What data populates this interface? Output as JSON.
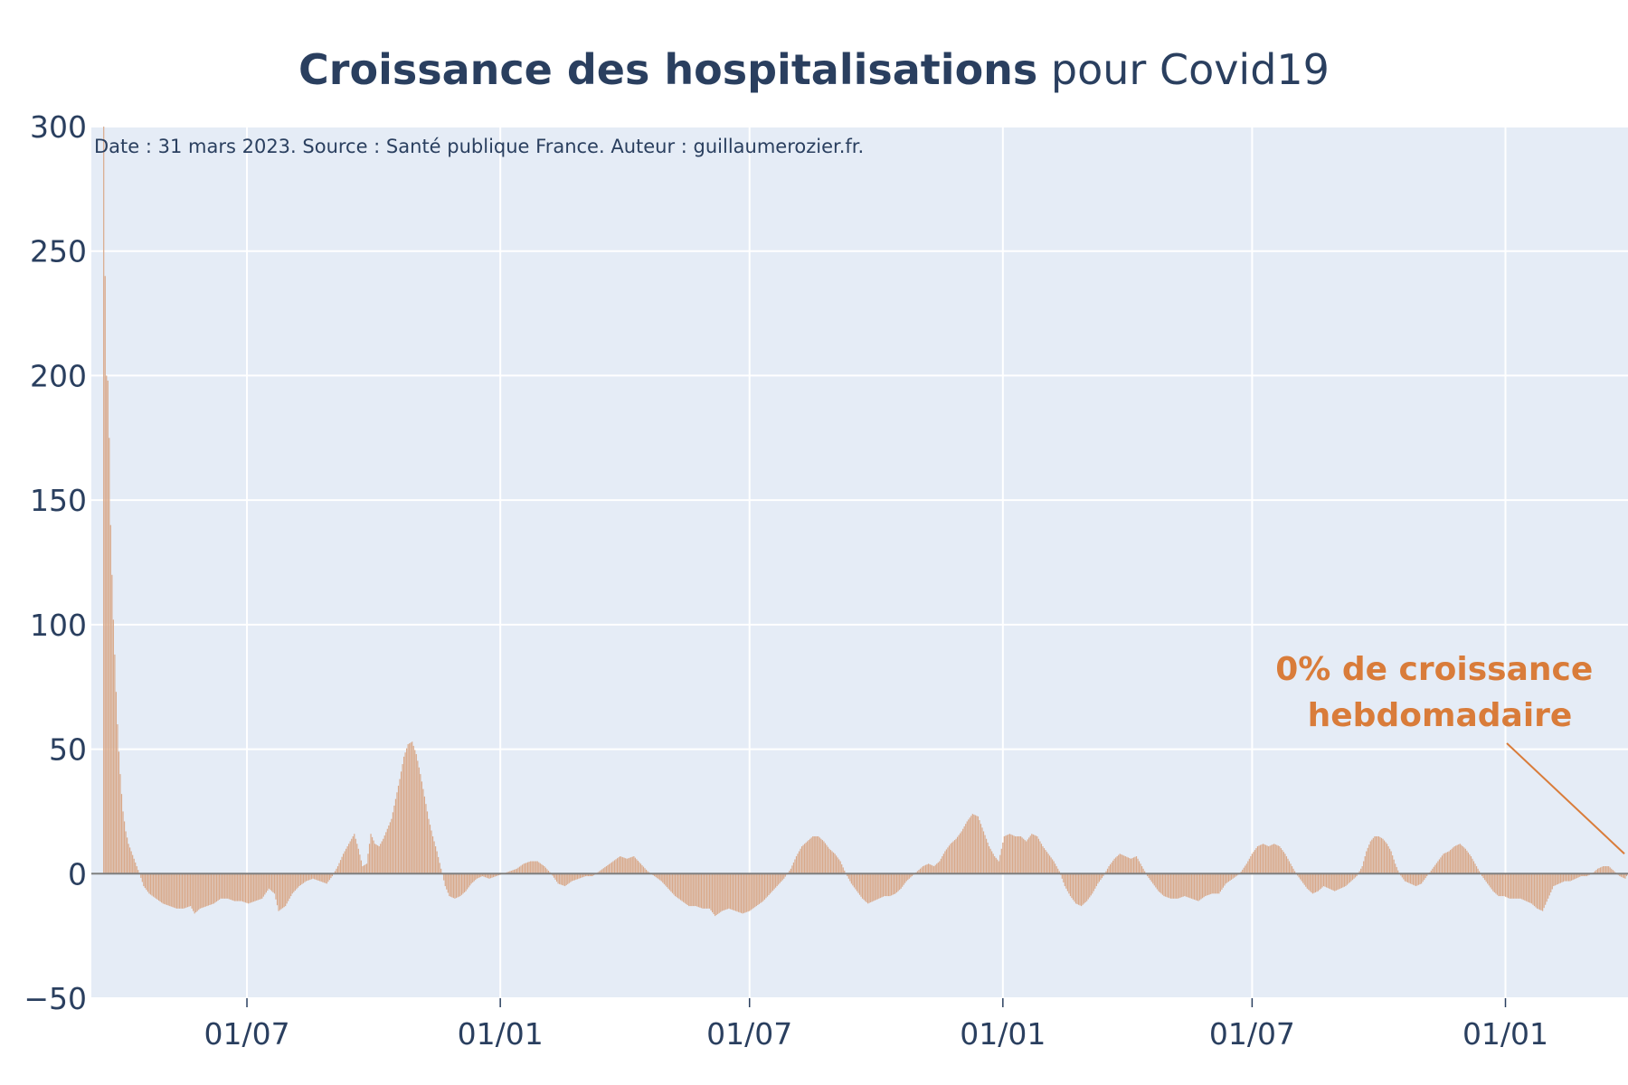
{
  "chart_data": {
    "type": "bar",
    "title_bold": "Croissance des hospitalisations",
    "title_rest": " pour Covid19",
    "subtitle": "Date : 31 mars 2023. Source : Santé publique France. Auteur : guillaumerozier.fr.",
    "xlabel": "",
    "ylabel": "",
    "ylim": [
      -50,
      300
    ],
    "y_ticks": [
      "300",
      "250",
      "200",
      "150",
      "100",
      "50",
      "0",
      "−50"
    ],
    "y_tick_values": [
      300,
      250,
      200,
      150,
      100,
      50,
      0,
      -50
    ],
    "x_ticks": [
      "01/07",
      "01/01",
      "01/07",
      "01/01",
      "01/07",
      "01/01"
    ],
    "x_tick_values": [
      "2020-07-01",
      "2021-01-01",
      "2021-07-01",
      "2022-01-01",
      "2022-07-01",
      "2023-01-01"
    ],
    "x_range": [
      "2020-03-10",
      "2023-03-31"
    ],
    "bar_color": "#d9a98a",
    "zero_line_color": "#7f7f7f",
    "grid": true,
    "plot_bg": "#e5ecf6",
    "annotation": {
      "lines": [
        "0% de croissance",
        "hebdomadaire"
      ],
      "color": "#d97c3a",
      "points_to": {
        "x": "2023-03-31",
        "y": 0
      }
    },
    "series": [
      {
        "points": [
          [
            "2020-03-19",
            300
          ],
          [
            "2020-03-20",
            240
          ],
          [
            "2020-03-21",
            200
          ],
          [
            "2020-03-22",
            198
          ],
          [
            "2020-03-23",
            175
          ],
          [
            "2020-03-24",
            140
          ],
          [
            "2020-03-25",
            120
          ],
          [
            "2020-03-26",
            102
          ],
          [
            "2020-03-27",
            88
          ],
          [
            "2020-03-28",
            73
          ],
          [
            "2020-03-29",
            60
          ],
          [
            "2020-03-30",
            49
          ],
          [
            "2020-03-31",
            40
          ],
          [
            "2020-04-01",
            32
          ],
          [
            "2020-04-02",
            25
          ],
          [
            "2020-04-04",
            17
          ],
          [
            "2020-04-06",
            12
          ],
          [
            "2020-04-08",
            9
          ],
          [
            "2020-04-10",
            6
          ],
          [
            "2020-04-12",
            3
          ],
          [
            "2020-04-14",
            0
          ],
          [
            "2020-04-17",
            -5
          ],
          [
            "2020-04-21",
            -8
          ],
          [
            "2020-04-26",
            -10
          ],
          [
            "2020-05-01",
            -12
          ],
          [
            "2020-05-06",
            -13
          ],
          [
            "2020-05-11",
            -14
          ],
          [
            "2020-05-16",
            -14
          ],
          [
            "2020-05-21",
            -13
          ],
          [
            "2020-05-24",
            -16
          ],
          [
            "2020-05-28",
            -14
          ],
          [
            "2020-06-02",
            -13
          ],
          [
            "2020-06-07",
            -12
          ],
          [
            "2020-06-12",
            -10
          ],
          [
            "2020-06-17",
            -10
          ],
          [
            "2020-06-22",
            -11
          ],
          [
            "2020-06-27",
            -11
          ],
          [
            "2020-07-02",
            -12
          ],
          [
            "2020-07-07",
            -11
          ],
          [
            "2020-07-12",
            -10
          ],
          [
            "2020-07-17",
            -6
          ],
          [
            "2020-07-21",
            -8
          ],
          [
            "2020-07-24",
            -15
          ],
          [
            "2020-07-29",
            -13
          ],
          [
            "2020-08-03",
            -8
          ],
          [
            "2020-08-08",
            -5
          ],
          [
            "2020-08-13",
            -3
          ],
          [
            "2020-08-18",
            -2
          ],
          [
            "2020-08-23",
            -3
          ],
          [
            "2020-08-28",
            -4
          ],
          [
            "2020-09-01",
            -1
          ],
          [
            "2020-09-05",
            3
          ],
          [
            "2020-09-09",
            8
          ],
          [
            "2020-09-13",
            12
          ],
          [
            "2020-09-17",
            16
          ],
          [
            "2020-09-20",
            10
          ],
          [
            "2020-09-23",
            3
          ],
          [
            "2020-09-26",
            4
          ],
          [
            "2020-09-29",
            16
          ],
          [
            "2020-10-02",
            12
          ],
          [
            "2020-10-05",
            11
          ],
          [
            "2020-10-08",
            14
          ],
          [
            "2020-10-11",
            18
          ],
          [
            "2020-10-14",
            22
          ],
          [
            "2020-10-17",
            30
          ],
          [
            "2020-10-20",
            38
          ],
          [
            "2020-10-23",
            47
          ],
          [
            "2020-10-26",
            52
          ],
          [
            "2020-10-29",
            53
          ],
          [
            "2020-11-01",
            48
          ],
          [
            "2020-11-04",
            40
          ],
          [
            "2020-11-07",
            31
          ],
          [
            "2020-11-10",
            22
          ],
          [
            "2020-11-13",
            15
          ],
          [
            "2020-11-16",
            9
          ],
          [
            "2020-11-19",
            2
          ],
          [
            "2020-11-22",
            -5
          ],
          [
            "2020-11-25",
            -9
          ],
          [
            "2020-11-29",
            -10
          ],
          [
            "2020-12-03",
            -9
          ],
          [
            "2020-12-07",
            -7
          ],
          [
            "2020-12-11",
            -4
          ],
          [
            "2020-12-15",
            -2
          ],
          [
            "2020-12-19",
            -1
          ],
          [
            "2020-12-24",
            -2
          ],
          [
            "2020-12-29",
            -1
          ],
          [
            "2021-01-03",
            0
          ],
          [
            "2021-01-08",
            1
          ],
          [
            "2021-01-13",
            2
          ],
          [
            "2021-01-18",
            4
          ],
          [
            "2021-01-23",
            5
          ],
          [
            "2021-01-28",
            5
          ],
          [
            "2021-02-02",
            3
          ],
          [
            "2021-02-07",
            0
          ],
          [
            "2021-02-12",
            -4
          ],
          [
            "2021-02-17",
            -5
          ],
          [
            "2021-02-22",
            -3
          ],
          [
            "2021-02-27",
            -2
          ],
          [
            "2021-03-04",
            -1
          ],
          [
            "2021-03-09",
            -1
          ],
          [
            "2021-03-14",
            1
          ],
          [
            "2021-03-19",
            3
          ],
          [
            "2021-03-24",
            5
          ],
          [
            "2021-03-29",
            7
          ],
          [
            "2021-04-03",
            6
          ],
          [
            "2021-04-08",
            7
          ],
          [
            "2021-04-13",
            4
          ],
          [
            "2021-04-18",
            1
          ],
          [
            "2021-04-23",
            -1
          ],
          [
            "2021-04-28",
            -3
          ],
          [
            "2021-05-03",
            -6
          ],
          [
            "2021-05-08",
            -9
          ],
          [
            "2021-05-13",
            -11
          ],
          [
            "2021-05-18",
            -13
          ],
          [
            "2021-05-23",
            -13
          ],
          [
            "2021-05-28",
            -14
          ],
          [
            "2021-06-02",
            -14
          ],
          [
            "2021-06-06",
            -17
          ],
          [
            "2021-06-11",
            -15
          ],
          [
            "2021-06-16",
            -14
          ],
          [
            "2021-06-21",
            -15
          ],
          [
            "2021-06-26",
            -16
          ],
          [
            "2021-07-01",
            -15
          ],
          [
            "2021-07-06",
            -13
          ],
          [
            "2021-07-11",
            -11
          ],
          [
            "2021-07-16",
            -8
          ],
          [
            "2021-07-21",
            -5
          ],
          [
            "2021-07-26",
            -2
          ],
          [
            "2021-07-31",
            2
          ],
          [
            "2021-08-04",
            7
          ],
          [
            "2021-08-08",
            11
          ],
          [
            "2021-08-12",
            13
          ],
          [
            "2021-08-16",
            15
          ],
          [
            "2021-08-20",
            15
          ],
          [
            "2021-08-24",
            13
          ],
          [
            "2021-08-28",
            10
          ],
          [
            "2021-09-01",
            8
          ],
          [
            "2021-09-05",
            5
          ],
          [
            "2021-09-09",
            0
          ],
          [
            "2021-09-13",
            -4
          ],
          [
            "2021-09-17",
            -7
          ],
          [
            "2021-09-21",
            -10
          ],
          [
            "2021-09-25",
            -12
          ],
          [
            "2021-09-29",
            -11
          ],
          [
            "2021-10-03",
            -10
          ],
          [
            "2021-10-07",
            -9
          ],
          [
            "2021-10-11",
            -9
          ],
          [
            "2021-10-15",
            -8
          ],
          [
            "2021-10-19",
            -6
          ],
          [
            "2021-10-23",
            -3
          ],
          [
            "2021-10-27",
            -1
          ],
          [
            "2021-10-31",
            1
          ],
          [
            "2021-11-04",
            3
          ],
          [
            "2021-11-08",
            4
          ],
          [
            "2021-11-12",
            3
          ],
          [
            "2021-11-16",
            5
          ],
          [
            "2021-11-20",
            9
          ],
          [
            "2021-11-24",
            12
          ],
          [
            "2021-11-28",
            14
          ],
          [
            "2021-12-02",
            17
          ],
          [
            "2021-12-06",
            21
          ],
          [
            "2021-12-10",
            24
          ],
          [
            "2021-12-14",
            23
          ],
          [
            "2021-12-18",
            17
          ],
          [
            "2021-12-22",
            11
          ],
          [
            "2021-12-26",
            7
          ],
          [
            "2021-12-29",
            5
          ],
          [
            "2022-01-02",
            15
          ],
          [
            "2022-01-06",
            16
          ],
          [
            "2022-01-10",
            15
          ],
          [
            "2022-01-14",
            15
          ],
          [
            "2022-01-18",
            13
          ],
          [
            "2022-01-22",
            16
          ],
          [
            "2022-01-26",
            15
          ],
          [
            "2022-01-30",
            11
          ],
          [
            "2022-02-03",
            8
          ],
          [
            "2022-02-07",
            5
          ],
          [
            "2022-02-11",
            1
          ],
          [
            "2022-02-15",
            -5
          ],
          [
            "2022-02-19",
            -9
          ],
          [
            "2022-02-23",
            -12
          ],
          [
            "2022-02-27",
            -13
          ],
          [
            "2022-03-03",
            -11
          ],
          [
            "2022-03-07",
            -8
          ],
          [
            "2022-03-11",
            -4
          ],
          [
            "2022-03-15",
            -1
          ],
          [
            "2022-03-19",
            3
          ],
          [
            "2022-03-23",
            6
          ],
          [
            "2022-03-27",
            8
          ],
          [
            "2022-03-31",
            7
          ],
          [
            "2022-04-04",
            6
          ],
          [
            "2022-04-08",
            7
          ],
          [
            "2022-04-12",
            3
          ],
          [
            "2022-04-16",
            -1
          ],
          [
            "2022-04-20",
            -4
          ],
          [
            "2022-04-24",
            -7
          ],
          [
            "2022-04-28",
            -9
          ],
          [
            "2022-05-03",
            -10
          ],
          [
            "2022-05-08",
            -10
          ],
          [
            "2022-05-13",
            -9
          ],
          [
            "2022-05-18",
            -10
          ],
          [
            "2022-05-23",
            -11
          ],
          [
            "2022-05-28",
            -9
          ],
          [
            "2022-06-02",
            -8
          ],
          [
            "2022-06-07",
            -8
          ],
          [
            "2022-06-12",
            -4
          ],
          [
            "2022-06-17",
            -2
          ],
          [
            "2022-06-22",
            0
          ],
          [
            "2022-06-27",
            4
          ],
          [
            "2022-07-01",
            8
          ],
          [
            "2022-07-05",
            11
          ],
          [
            "2022-07-09",
            12
          ],
          [
            "2022-07-13",
            11
          ],
          [
            "2022-07-17",
            12
          ],
          [
            "2022-07-21",
            11
          ],
          [
            "2022-07-25",
            8
          ],
          [
            "2022-07-29",
            4
          ],
          [
            "2022-08-02",
            0
          ],
          [
            "2022-08-06",
            -3
          ],
          [
            "2022-08-10",
            -6
          ],
          [
            "2022-08-14",
            -8
          ],
          [
            "2022-08-18",
            -7
          ],
          [
            "2022-08-22",
            -5
          ],
          [
            "2022-08-26",
            -6
          ],
          [
            "2022-08-30",
            -7
          ],
          [
            "2022-09-03",
            -6
          ],
          [
            "2022-09-07",
            -5
          ],
          [
            "2022-09-11",
            -3
          ],
          [
            "2022-09-15",
            -1
          ],
          [
            "2022-09-19",
            3
          ],
          [
            "2022-09-22",
            9
          ],
          [
            "2022-09-25",
            13
          ],
          [
            "2022-09-28",
            15
          ],
          [
            "2022-10-01",
            15
          ],
          [
            "2022-10-04",
            14
          ],
          [
            "2022-10-07",
            12
          ],
          [
            "2022-10-10",
            9
          ],
          [
            "2022-10-13",
            4
          ],
          [
            "2022-10-16",
            0
          ],
          [
            "2022-10-20",
            -3
          ],
          [
            "2022-10-24",
            -4
          ],
          [
            "2022-10-28",
            -5
          ],
          [
            "2022-11-01",
            -4
          ],
          [
            "2022-11-05",
            -1
          ],
          [
            "2022-11-09",
            2
          ],
          [
            "2022-11-13",
            5
          ],
          [
            "2022-11-17",
            8
          ],
          [
            "2022-11-21",
            9
          ],
          [
            "2022-11-25",
            11
          ],
          [
            "2022-11-29",
            12
          ],
          [
            "2022-12-03",
            10
          ],
          [
            "2022-12-07",
            7
          ],
          [
            "2022-12-11",
            3
          ],
          [
            "2022-12-15",
            -1
          ],
          [
            "2022-12-19",
            -4
          ],
          [
            "2022-12-23",
            -7
          ],
          [
            "2022-12-27",
            -9
          ],
          [
            "2022-12-31",
            -9
          ],
          [
            "2023-01-04",
            -10
          ],
          [
            "2023-01-08",
            -10
          ],
          [
            "2023-01-12",
            -10
          ],
          [
            "2023-01-16",
            -11
          ],
          [
            "2023-01-20",
            -12
          ],
          [
            "2023-01-24",
            -14
          ],
          [
            "2023-01-28",
            -15
          ],
          [
            "2023-02-01",
            -10
          ],
          [
            "2023-02-05",
            -5
          ],
          [
            "2023-02-09",
            -4
          ],
          [
            "2023-02-13",
            -3
          ],
          [
            "2023-02-17",
            -3
          ],
          [
            "2023-02-21",
            -2
          ],
          [
            "2023-02-25",
            -1
          ],
          [
            "2023-03-01",
            -1
          ],
          [
            "2023-03-05",
            0
          ],
          [
            "2023-03-09",
            2
          ],
          [
            "2023-03-13",
            3
          ],
          [
            "2023-03-17",
            3
          ],
          [
            "2023-03-21",
            1
          ],
          [
            "2023-03-25",
            -1
          ],
          [
            "2023-03-29",
            -2
          ],
          [
            "2023-03-31",
            0
          ]
        ]
      }
    ]
  }
}
